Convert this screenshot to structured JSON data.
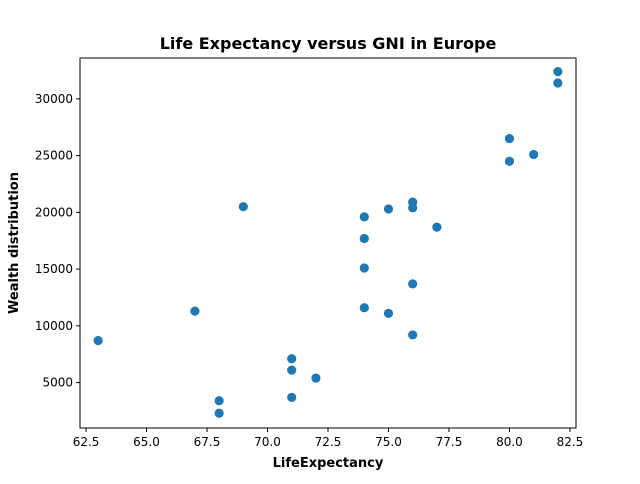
{
  "chart_data": {
    "type": "scatter",
    "title": "Life Expectancy versus GNI in Europe",
    "xlabel": "LifeExpectancy",
    "ylabel": "Wealth distribution",
    "xlim": [
      62.25,
      82.75
    ],
    "ylim": [
      1000,
      33600
    ],
    "x_ticks": [
      62.5,
      65.0,
      67.5,
      70.0,
      72.5,
      75.0,
      77.5,
      80.0,
      82.5
    ],
    "x_tick_labels": [
      "62.5",
      "65.0",
      "67.5",
      "70.0",
      "72.5",
      "75.0",
      "77.5",
      "80.0",
      "82.5"
    ],
    "y_ticks": [
      5000,
      10000,
      15000,
      20000,
      25000,
      30000
    ],
    "y_tick_labels": [
      "5000",
      "10000",
      "15000",
      "20000",
      "25000",
      "30000"
    ],
    "grid": false,
    "marker_color": "#1f77b4",
    "points": [
      {
        "x": 63,
        "y": 8700
      },
      {
        "x": 67,
        "y": 11300
      },
      {
        "x": 68,
        "y": 3400
      },
      {
        "x": 68,
        "y": 2300
      },
      {
        "x": 69,
        "y": 20500
      },
      {
        "x": 71,
        "y": 7100
      },
      {
        "x": 71,
        "y": 6100
      },
      {
        "x": 71,
        "y": 3700
      },
      {
        "x": 72,
        "y": 5400
      },
      {
        "x": 74,
        "y": 19600
      },
      {
        "x": 74,
        "y": 17700
      },
      {
        "x": 74,
        "y": 15100
      },
      {
        "x": 74,
        "y": 11600
      },
      {
        "x": 75,
        "y": 20300
      },
      {
        "x": 75,
        "y": 11100
      },
      {
        "x": 76,
        "y": 20900
      },
      {
        "x": 76,
        "y": 20400
      },
      {
        "x": 76,
        "y": 13700
      },
      {
        "x": 76,
        "y": 9200
      },
      {
        "x": 77,
        "y": 18700
      },
      {
        "x": 80,
        "y": 26500
      },
      {
        "x": 80,
        "y": 24500
      },
      {
        "x": 81,
        "y": 25100
      },
      {
        "x": 82,
        "y": 32400
      },
      {
        "x": 82,
        "y": 31400
      }
    ]
  }
}
